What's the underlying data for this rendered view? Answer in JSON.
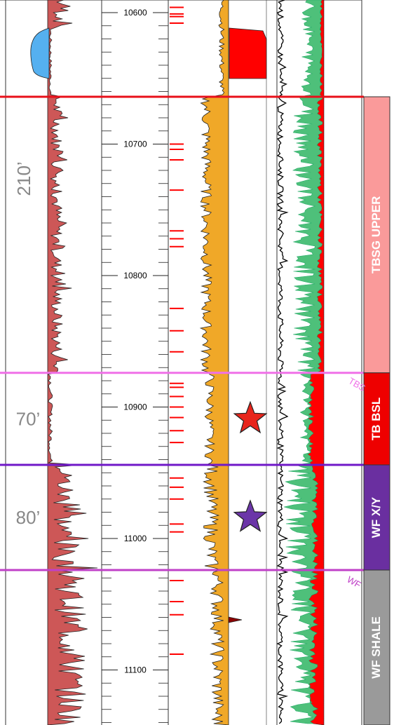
{
  "depth_track": {
    "ticks": [
      {
        "depth": 10600,
        "label": "10600"
      },
      {
        "depth": 10700,
        "label": "10700"
      },
      {
        "depth": 10800,
        "label": "10800"
      },
      {
        "depth": 10900,
        "label": "10900"
      },
      {
        "depth": 11000,
        "label": "11000"
      },
      {
        "depth": 11100,
        "label": "11100"
      }
    ]
  },
  "zones": [
    {
      "id": "tbsg-upper",
      "label": "TBSG UPPER",
      "thickness_label": "210’",
      "top_depth": 10664,
      "base_depth": 10874,
      "color": "#fa9a9a",
      "star": false
    },
    {
      "id": "tb-bsl",
      "label": "TB BSL",
      "thickness_label": "70’",
      "top_depth": 10874,
      "base_depth": 10944,
      "color": "#ee0000",
      "star": true,
      "star_color": "#e8251c"
    },
    {
      "id": "wf-xy",
      "label": "WF X/Y",
      "thickness_label": "80’",
      "top_depth": 10944,
      "base_depth": 11024,
      "color": "#6a2fa0",
      "star": true,
      "star_color": "#6b35a8"
    },
    {
      "id": "wf-shale",
      "label": "WF SHALE",
      "thickness_label": "",
      "top_depth": 11024,
      "base_depth": 11160,
      "color": "#9a9a9a",
      "star": false
    }
  ],
  "pick_lines": [
    {
      "id": "top-tbsg",
      "depth": 10664,
      "color": "#e8101a"
    },
    {
      "id": "top-tb-bsl",
      "depth": 10874,
      "color": "#f070e8"
    },
    {
      "id": "top-wf-xy",
      "depth": 10944,
      "color": "#7018c8"
    },
    {
      "id": "top-wf-shale",
      "depth": 11024,
      "color": "#c040c8"
    }
  ],
  "pick_labels": [
    {
      "id": "tbs-pick",
      "text": "TBS",
      "color": "#f070e8"
    },
    {
      "id": "wf-pick",
      "text": "WF",
      "color": "#c040c8"
    }
  ],
  "curve_colors": {
    "gamma_fill": "#cd5757",
    "gamma_low_fill": "#55b0f0",
    "density_fill": "#f0a828",
    "red_fill": "#ff0000",
    "green_fill": "#4ec07a",
    "tick_marks": "#ff0000"
  },
  "red_tick_depths": [
    10596,
    10601,
    10603,
    10608,
    10700,
    10704,
    10712,
    10735,
    10766,
    10772,
    10778,
    10825,
    10842,
    10858,
    10882,
    10885,
    10892,
    10900,
    10908,
    10918,
    10927,
    10954,
    10961,
    10970,
    10989,
    10995,
    11032,
    11048,
    11058,
    11088
  ]
}
